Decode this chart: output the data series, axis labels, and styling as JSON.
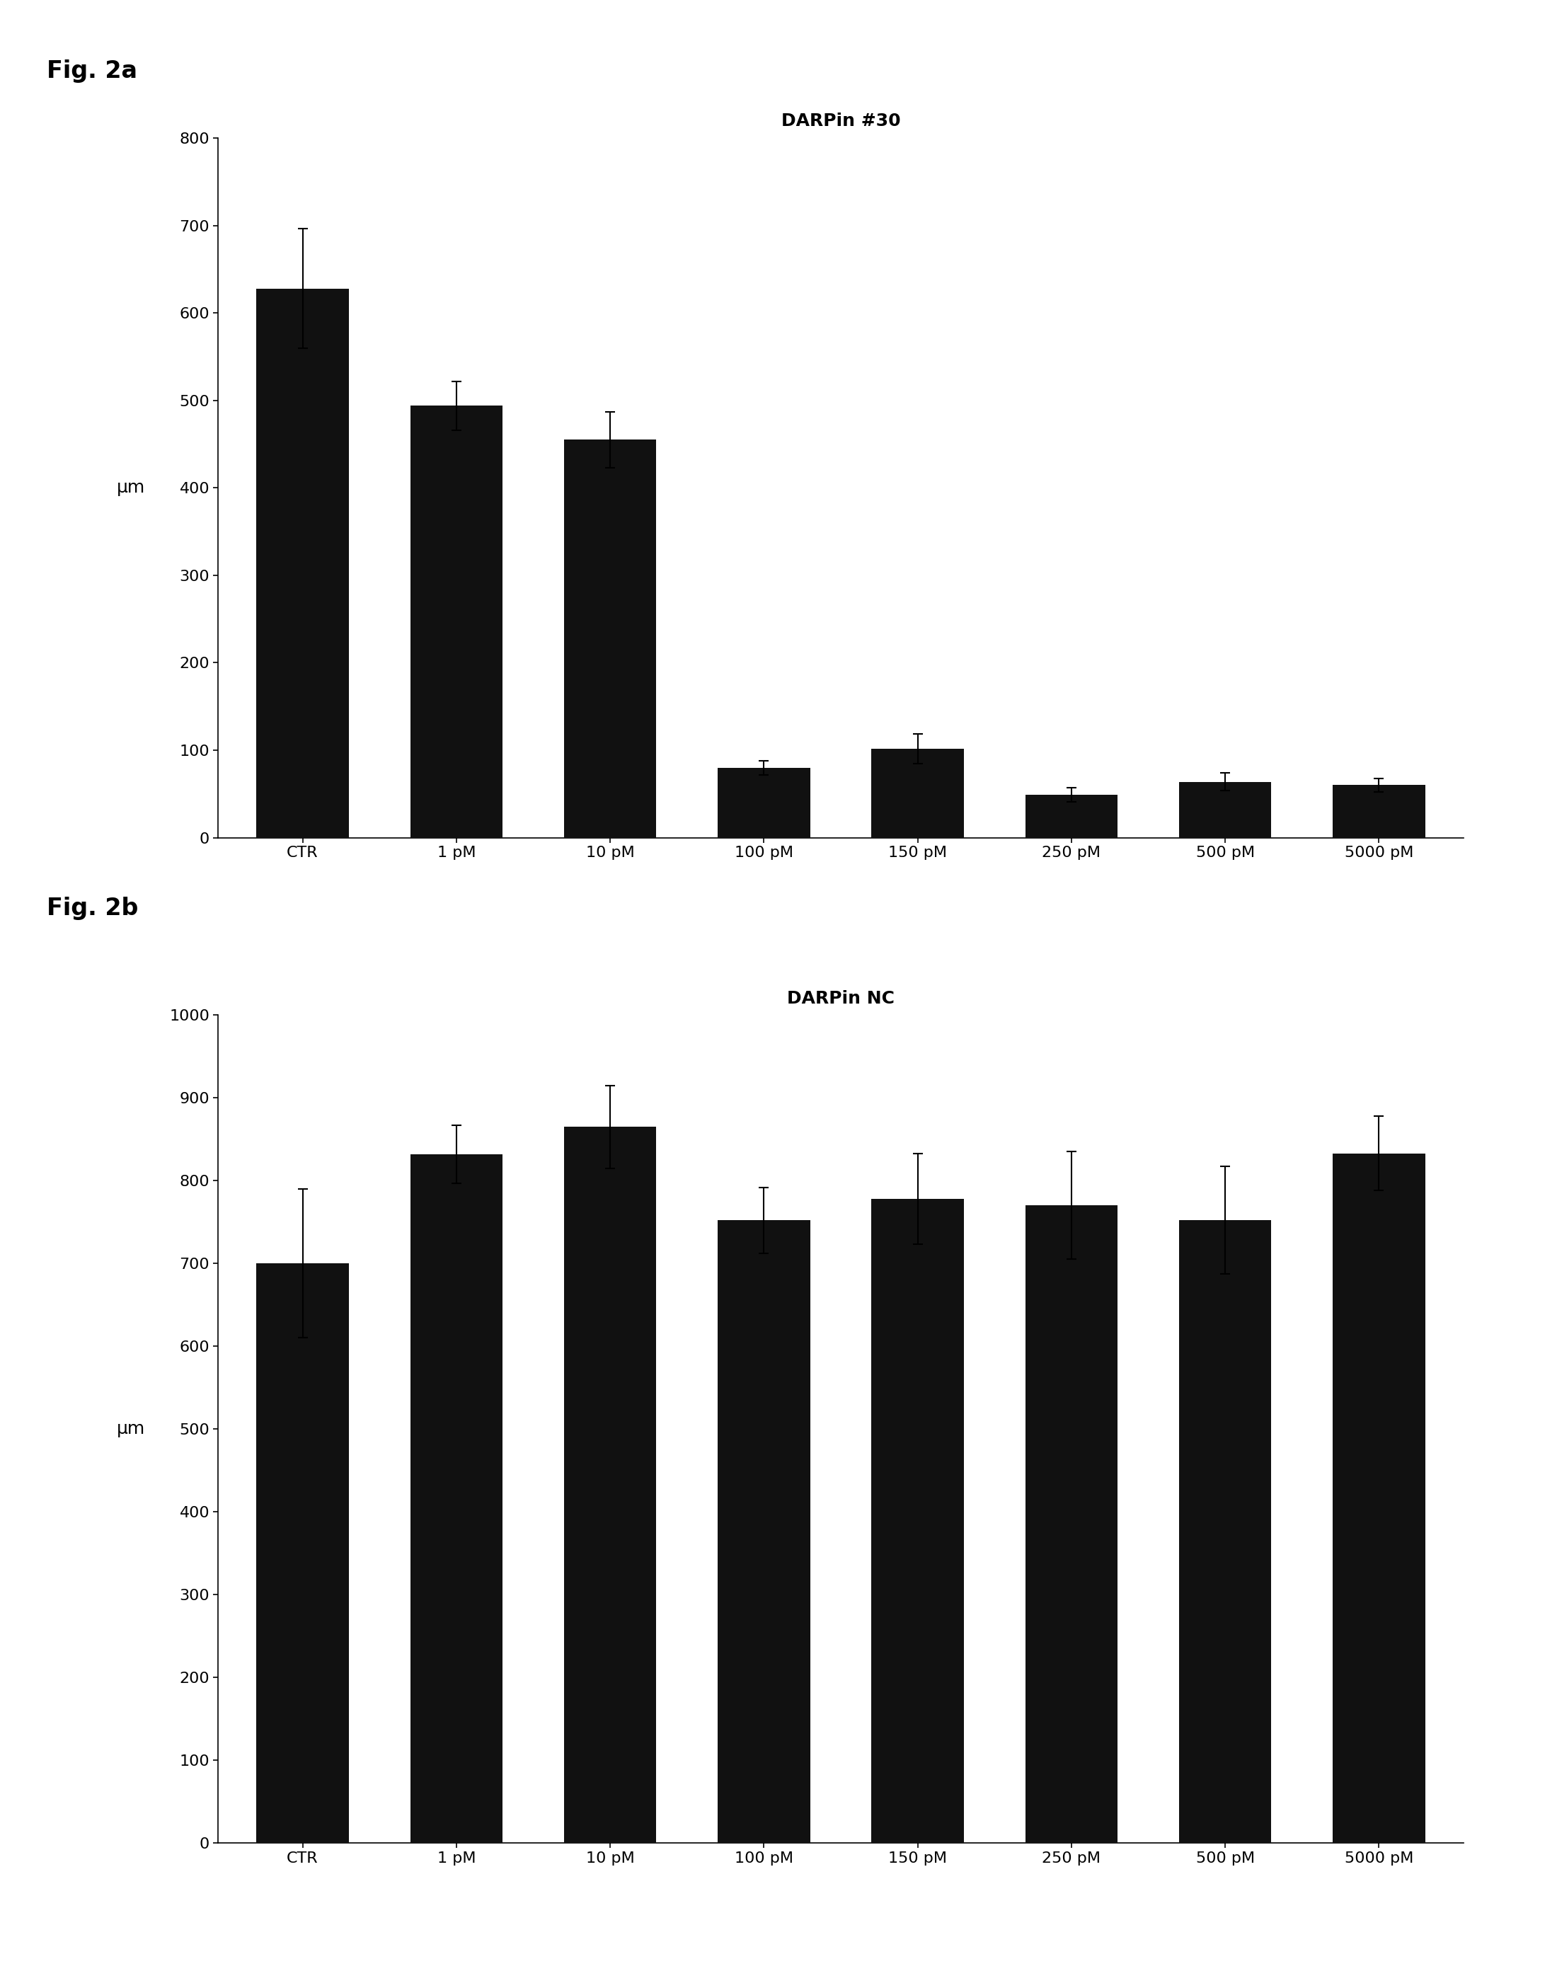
{
  "fig_a": {
    "title": "DARPin #30",
    "fig_label": "Fig. 2a",
    "categories": [
      "CTR",
      "1 pM",
      "10 pM",
      "100 pM",
      "150 pM",
      "250 pM",
      "500 pM",
      "5000 pM"
    ],
    "values": [
      628,
      494,
      455,
      80,
      102,
      49,
      64,
      60
    ],
    "errors": [
      68,
      28,
      32,
      8,
      17,
      8,
      10,
      8
    ],
    "ylim": [
      0,
      800
    ],
    "yticks": [
      0,
      100,
      200,
      300,
      400,
      500,
      600,
      700,
      800
    ],
    "ylabel": "μm"
  },
  "fig_b": {
    "title": "DARPin NC",
    "fig_label": "Fig. 2b",
    "categories": [
      "CTR",
      "1 pM",
      "10 pM",
      "100 pM",
      "150 pM",
      "250 pM",
      "500 pM",
      "5000 pM"
    ],
    "values": [
      700,
      832,
      865,
      752,
      778,
      770,
      752,
      833
    ],
    "errors": [
      90,
      35,
      50,
      40,
      55,
      65,
      65,
      45
    ],
    "ylim": [
      0,
      1000
    ],
    "yticks": [
      0,
      100,
      200,
      300,
      400,
      500,
      600,
      700,
      800,
      900,
      1000
    ],
    "ylabel": "μm"
  },
  "bar_color": "#111111",
  "bar_width": 0.6,
  "background_color": "#ffffff",
  "title_fontsize": 18,
  "label_fontsize": 18,
  "tick_fontsize": 16,
  "fig_label_fontsize": 24,
  "capsize": 5,
  "error_linewidth": 1.5
}
